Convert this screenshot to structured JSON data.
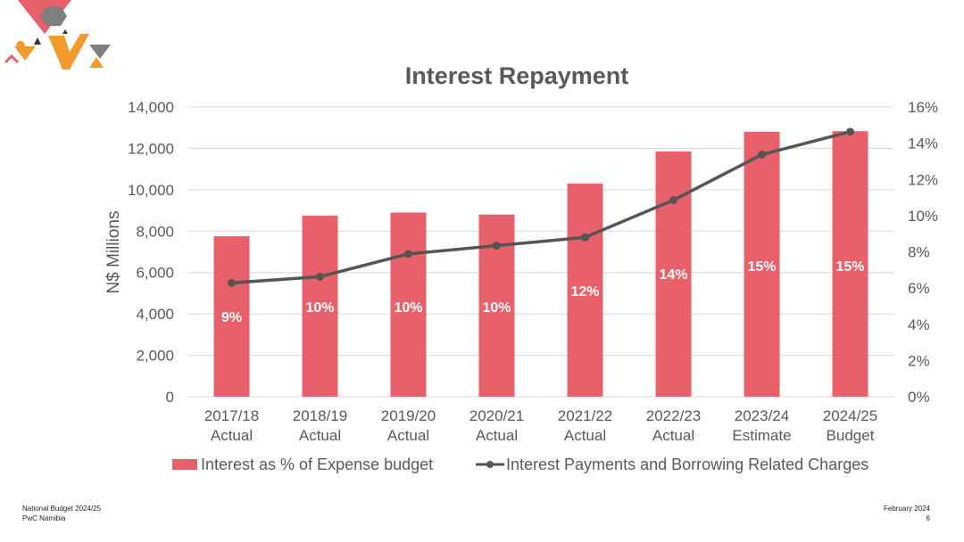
{
  "footer": {
    "left_line1": "National Budget 2024/25",
    "left_line2": "PwC Namibia",
    "right_line1": "February 2024",
    "page_number": "6"
  },
  "colors": {
    "bar": "#E8616A",
    "line": "#555555",
    "grid": "#D9D9D9",
    "axis_text": "#595959",
    "bar_label": "#ffffff",
    "logo_red": "#E8616A",
    "logo_orange": "#F29A2E",
    "logo_gray": "#7F7F7F",
    "logo_dark": "#333333"
  },
  "chart_data": {
    "type": "bar+line",
    "title": "Interest Repayment",
    "ylabel": "N$ Millions",
    "ylim": [
      0,
      14000
    ],
    "y_ticks": [
      "0",
      "2,000",
      "4,000",
      "6,000",
      "8,000",
      "10,000",
      "12,000",
      "14,000"
    ],
    "y2lim": [
      0,
      16
    ],
    "y2_ticks": [
      "0%",
      "2%",
      "4%",
      "6%",
      "8%",
      "10%",
      "12%",
      "14%",
      "16%"
    ],
    "categories": [
      [
        "2017/18",
        "Actual"
      ],
      [
        "2018/19",
        "Actual"
      ],
      [
        "2019/20",
        "Actual"
      ],
      [
        "2020/21",
        "Actual"
      ],
      [
        "2021/22",
        "Actual"
      ],
      [
        "2022/23",
        "Actual"
      ],
      [
        "2023/24",
        "Estimate"
      ],
      [
        "2024/25",
        "Budget"
      ]
    ],
    "series": [
      {
        "name": "Interest as % of Expense budget",
        "kind": "bar",
        "axis": "left",
        "values": [
          7750,
          8750,
          8900,
          8800,
          10300,
          11850,
          12800,
          12830
        ],
        "labels": [
          "9%",
          "10%",
          "10%",
          "10%",
          "12%",
          "14%",
          "15%",
          "15%"
        ]
      },
      {
        "name": "Interest Payments and Borrowing Related Charges",
        "kind": "line",
        "axis": "left",
        "values": [
          5500,
          5800,
          6900,
          7300,
          7700,
          9500,
          11700,
          12800
        ]
      }
    ],
    "legend_position": "bottom",
    "grid": true
  }
}
